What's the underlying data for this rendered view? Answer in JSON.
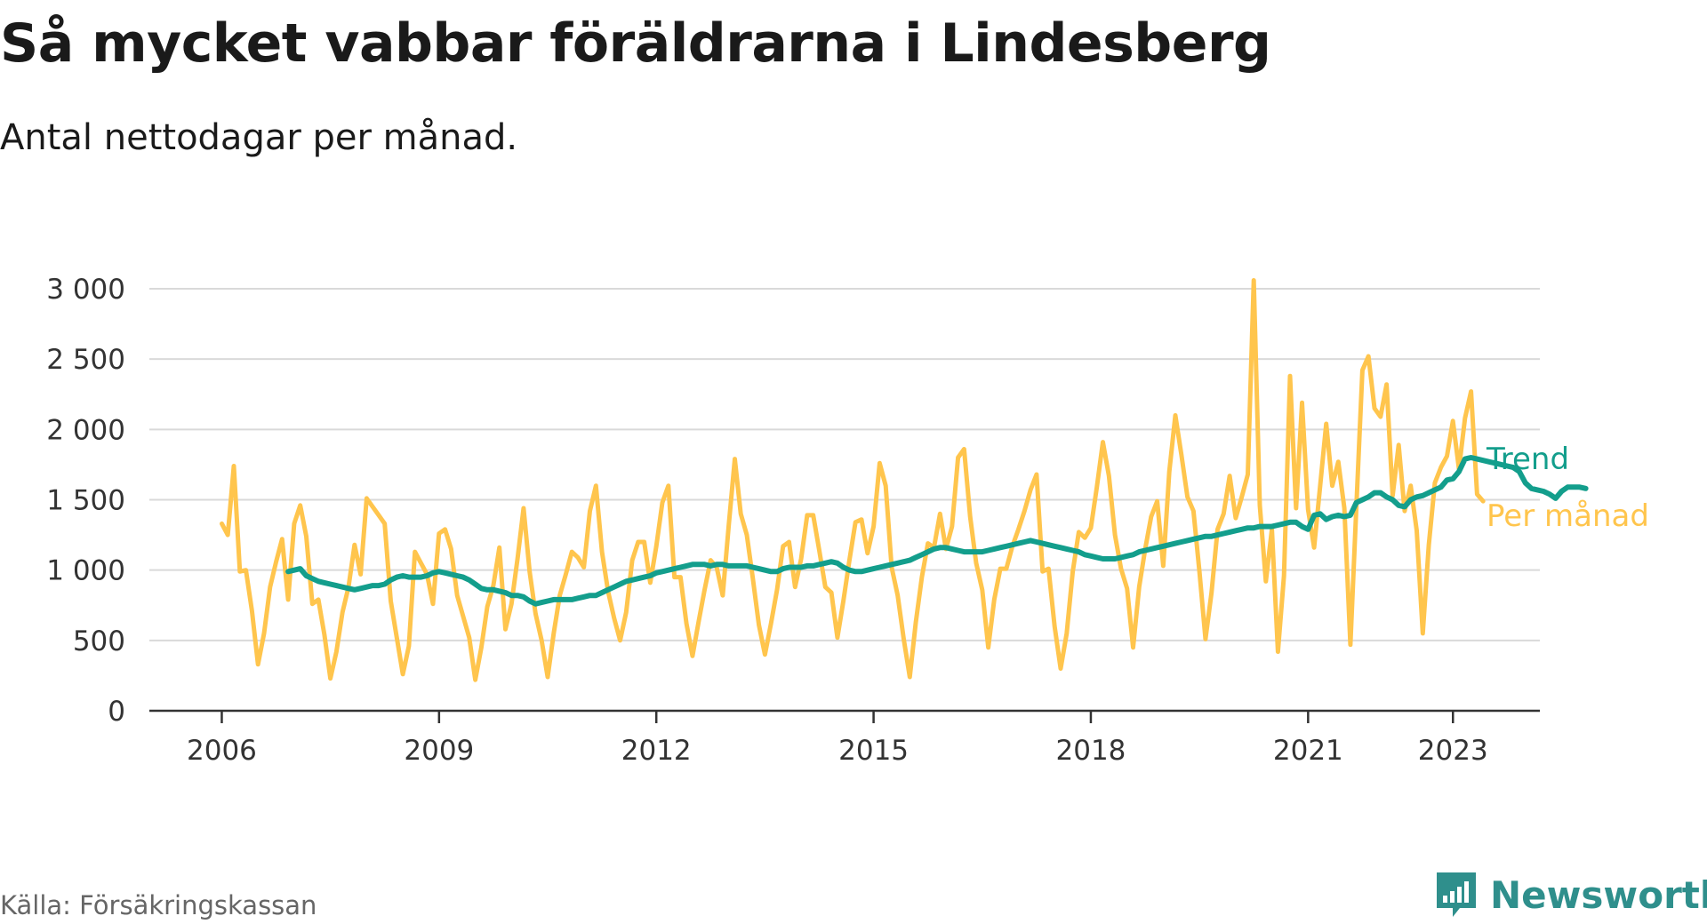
{
  "title": "Så mycket vabbar föräldrarna i Lindesberg",
  "subtitle": "Antal nettodagar per månad.",
  "source": "Källa: Försäkringskassan",
  "brand": {
    "name": "Newsworthy",
    "icon": "newsworthy-logo-icon",
    "color": "#2f8f8c"
  },
  "colors": {
    "monthly": "#ffc54d",
    "trend": "#139e8c",
    "grid": "#d9d9d9",
    "axis": "#333333"
  },
  "chart_data": {
    "type": "line",
    "title": "Så mycket vabbar föräldrarna i Lindesberg",
    "xlabel": "",
    "ylabel": "",
    "x_ticks": [
      {
        "label": "2006",
        "value": 2006
      },
      {
        "label": "2009",
        "value": 2009
      },
      {
        "label": "2012",
        "value": 2012
      },
      {
        "label": "2015",
        "value": 2015
      },
      {
        "label": "2018",
        "value": 2018
      },
      {
        "label": "2021",
        "value": 2021
      },
      {
        "label": "2023",
        "value": 2023
      }
    ],
    "y_ticks": [
      {
        "label": "0",
        "value": 0
      },
      {
        "label": "500",
        "value": 500
      },
      {
        "label": "1 000",
        "value": 1000
      },
      {
        "label": "1 500",
        "value": 1500
      },
      {
        "label": "2 000",
        "value": 2000
      },
      {
        "label": "2 500",
        "value": 2500
      },
      {
        "label": "3 000",
        "value": 3000
      }
    ],
    "xlim": [
      2005.0,
      2024.2
    ],
    "ylim": [
      0,
      3000
    ],
    "grid": true,
    "series": [
      {
        "name": "Per månad",
        "color": "#ffc54d",
        "start": 2006.0,
        "step": 0.0833333,
        "values": [
          1330,
          1250,
          1740,
          990,
          1000,
          710,
          330,
          550,
          880,
          1060,
          1220,
          790,
          1330,
          1460,
          1240,
          760,
          790,
          540,
          230,
          420,
          700,
          880,
          1180,
          970,
          1510,
          1450,
          1390,
          1330,
          780,
          520,
          260,
          460,
          1130,
          1050,
          970,
          760,
          1260,
          1290,
          1150,
          820,
          670,
          520,
          220,
          450,
          740,
          890,
          1160,
          580,
          760,
          1080,
          1440,
          990,
          690,
          500,
          240,
          550,
          820,
          970,
          1130,
          1090,
          1020,
          1420,
          1600,
          1130,
          850,
          660,
          500,
          700,
          1070,
          1200,
          1200,
          910,
          1170,
          1480,
          1600,
          950,
          950,
          620,
          390,
          630,
          860,
          1070,
          1020,
          820,
          1320,
          1790,
          1400,
          1250,
          940,
          610,
          400,
          620,
          860,
          1170,
          1200,
          880,
          1080,
          1390,
          1390,
          1140,
          880,
          840,
          520,
          780,
          1070,
          1340,
          1360,
          1120,
          1310,
          1760,
          1600,
          1020,
          820,
          510,
          240,
          630,
          950,
          1190,
          1160,
          1400,
          1150,
          1310,
          1800,
          1860,
          1380,
          1050,
          860,
          450,
          790,
          1010,
          1010,
          1170,
          1290,
          1420,
          1570,
          1680,
          990,
          1010,
          600,
          300,
          550,
          990,
          1270,
          1230,
          1300,
          1590,
          1910,
          1670,
          1250,
          1010,
          870,
          450,
          880,
          1150,
          1380,
          1490,
          1030,
          1700,
          2100,
          1820,
          1520,
          1420,
          990,
          510,
          840,
          1290,
          1400,
          1670,
          1370,
          1520,
          1680,
          3060,
          1460,
          920,
          1290,
          420,
          960,
          2380,
          1440,
          2190,
          1430,
          1160,
          1600,
          2040,
          1600,
          1770,
          1440,
          470,
          1450,
          2420,
          2520,
          2150,
          2090,
          2320,
          1530,
          1890,
          1420,
          1600,
          1280,
          550,
          1180,
          1620,
          1730,
          1810,
          2060,
          1720,
          2080,
          2270,
          1540,
          1490
        ]
      },
      {
        "name": "Trend",
        "color": "#139e8c",
        "start": 2006.9167,
        "step": 0.0833333,
        "values": [
          990,
          1000,
          1010,
          960,
          940,
          920,
          910,
          900,
          890,
          880,
          870,
          860,
          870,
          880,
          890,
          890,
          900,
          930,
          950,
          960,
          950,
          950,
          950,
          960,
          980,
          990,
          980,
          970,
          960,
          950,
          930,
          900,
          870,
          860,
          860,
          850,
          840,
          820,
          820,
          810,
          780,
          760,
          770,
          780,
          790,
          790,
          790,
          790,
          800,
          810,
          820,
          820,
          840,
          860,
          880,
          900,
          920,
          930,
          940,
          950,
          960,
          980,
          990,
          1000,
          1010,
          1020,
          1030,
          1040,
          1040,
          1040,
          1030,
          1040,
          1040,
          1030,
          1030,
          1030,
          1030,
          1020,
          1010,
          1000,
          990,
          990,
          1010,
          1020,
          1020,
          1020,
          1030,
          1030,
          1040,
          1050,
          1060,
          1050,
          1020,
          1000,
          990,
          990,
          1000,
          1010,
          1020,
          1030,
          1040,
          1050,
          1060,
          1070,
          1090,
          1110,
          1130,
          1150,
          1160,
          1160,
          1150,
          1140,
          1130,
          1130,
          1130,
          1130,
          1140,
          1150,
          1160,
          1170,
          1180,
          1190,
          1200,
          1210,
          1200,
          1190,
          1180,
          1170,
          1160,
          1150,
          1140,
          1130,
          1110,
          1100,
          1090,
          1080,
          1080,
          1080,
          1090,
          1100,
          1110,
          1130,
          1140,
          1150,
          1160,
          1170,
          1180,
          1190,
          1200,
          1210,
          1220,
          1230,
          1240,
          1240,
          1250,
          1260,
          1270,
          1280,
          1290,
          1300,
          1300,
          1310,
          1310,
          1310,
          1320,
          1330,
          1340,
          1340,
          1310,
          1290,
          1390,
          1400,
          1360,
          1380,
          1390,
          1380,
          1390,
          1480,
          1500,
          1520,
          1550,
          1550,
          1520,
          1500,
          1460,
          1450,
          1500,
          1520,
          1530,
          1550,
          1570,
          1590,
          1640,
          1650,
          1700,
          1790,
          1800,
          1790,
          1780,
          1770,
          1760,
          1750,
          1740,
          1730,
          1700,
          1620,
          1580,
          1570,
          1560,
          1540,
          1510,
          1560,
          1590,
          1590,
          1590,
          1580
        ]
      }
    ]
  }
}
